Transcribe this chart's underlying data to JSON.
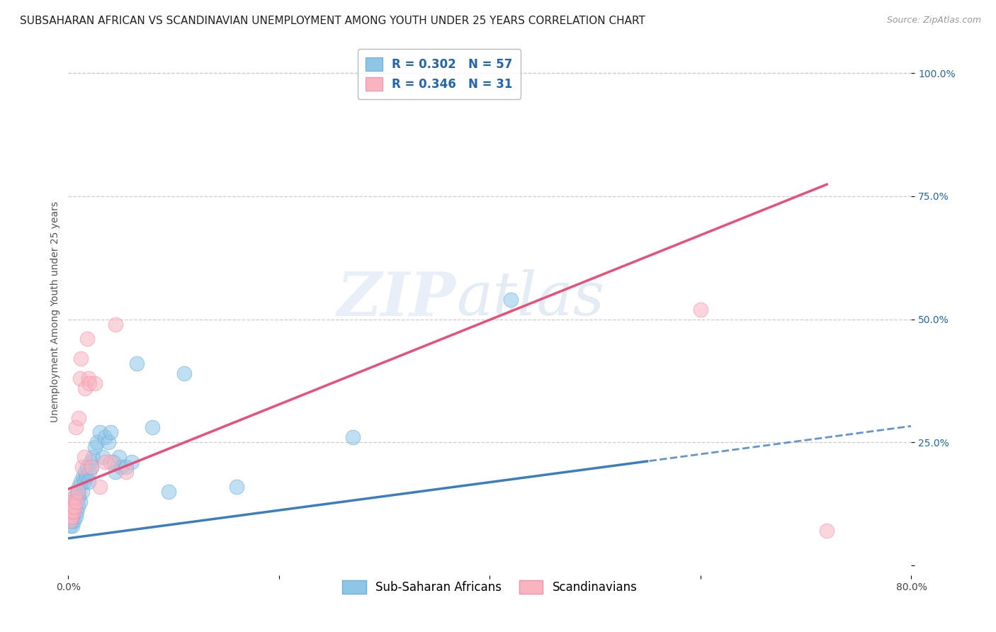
{
  "title": "SUBSAHARAN AFRICAN VS SCANDINAVIAN UNEMPLOYMENT AMONG YOUTH UNDER 25 YEARS CORRELATION CHART",
  "source": "Source: ZipAtlas.com",
  "ylabel": "Unemployment Among Youth under 25 years",
  "xlim": [
    0.0,
    0.8
  ],
  "ylim": [
    -0.02,
    1.05
  ],
  "yticks_right": [
    0.0,
    0.25,
    0.5,
    0.75,
    1.0
  ],
  "yticklabels_right": [
    "",
    "25.0%",
    "50.0%",
    "75.0%",
    "100.0%"
  ],
  "blue_color": "#8ec6e8",
  "pink_color": "#f9b4c0",
  "blue_edge": "#6baed6",
  "pink_edge": "#f48fb1",
  "trend_blue": "#3a7ebf",
  "trend_pink": "#e8507a",
  "r_blue": 0.302,
  "n_blue": 57,
  "r_pink": 0.346,
  "n_pink": 31,
  "legend_text_color": "#2166ac",
  "watermark_main": "ZIP",
  "watermark_sub": "atlas",
  "grid_color": "#cccccc",
  "background_color": "#ffffff",
  "title_fontsize": 11,
  "axis_label_fontsize": 10,
  "tick_fontsize": 10,
  "legend_fontsize": 12,
  "blue_trend_intercept": 0.055,
  "blue_trend_slope": 0.285,
  "blue_trend_solid_end": 0.55,
  "pink_trend_intercept": 0.155,
  "pink_trend_slope": 0.86,
  "pink_trend_solid_end": 0.72,
  "blue_scatter_x": [
    0.001,
    0.001,
    0.002,
    0.002,
    0.002,
    0.003,
    0.003,
    0.003,
    0.004,
    0.004,
    0.004,
    0.005,
    0.005,
    0.005,
    0.006,
    0.006,
    0.007,
    0.007,
    0.008,
    0.008,
    0.009,
    0.009,
    0.01,
    0.01,
    0.011,
    0.012,
    0.013,
    0.014,
    0.015,
    0.016,
    0.017,
    0.018,
    0.019,
    0.02,
    0.021,
    0.022,
    0.023,
    0.025,
    0.027,
    0.03,
    0.033,
    0.035,
    0.038,
    0.04,
    0.043,
    0.045,
    0.048,
    0.05,
    0.055,
    0.06,
    0.065,
    0.08,
    0.095,
    0.11,
    0.16,
    0.27,
    0.42
  ],
  "blue_scatter_y": [
    0.09,
    0.1,
    0.08,
    0.12,
    0.1,
    0.09,
    0.11,
    0.13,
    0.1,
    0.12,
    0.08,
    0.11,
    0.13,
    0.09,
    0.12,
    0.14,
    0.1,
    0.13,
    0.11,
    0.14,
    0.12,
    0.15,
    0.14,
    0.16,
    0.13,
    0.17,
    0.15,
    0.18,
    0.17,
    0.19,
    0.18,
    0.2,
    0.17,
    0.19,
    0.21,
    0.2,
    0.22,
    0.24,
    0.25,
    0.27,
    0.22,
    0.26,
    0.25,
    0.27,
    0.21,
    0.19,
    0.22,
    0.2,
    0.2,
    0.21,
    0.41,
    0.28,
    0.15,
    0.39,
    0.16,
    0.26,
    0.54
  ],
  "pink_scatter_x": [
    0.001,
    0.001,
    0.002,
    0.002,
    0.003,
    0.003,
    0.004,
    0.005,
    0.005,
    0.006,
    0.007,
    0.008,
    0.009,
    0.01,
    0.011,
    0.012,
    0.013,
    0.015,
    0.016,
    0.018,
    0.019,
    0.02,
    0.022,
    0.025,
    0.03,
    0.035,
    0.04,
    0.045,
    0.055,
    0.6,
    0.72
  ],
  "pink_scatter_y": [
    0.1,
    0.12,
    0.09,
    0.11,
    0.1,
    0.12,
    0.13,
    0.11,
    0.14,
    0.12,
    0.28,
    0.13,
    0.15,
    0.3,
    0.38,
    0.42,
    0.2,
    0.22,
    0.36,
    0.46,
    0.38,
    0.37,
    0.2,
    0.37,
    0.16,
    0.21,
    0.21,
    0.49,
    0.19,
    0.52,
    0.07
  ]
}
